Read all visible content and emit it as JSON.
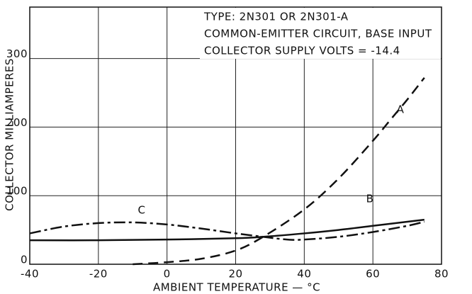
{
  "chart_data": {
    "type": "line",
    "xlabel": "AMBIENT TEMPERATURE — °C",
    "ylabel": "COLLECTOR MILLIAMPERES",
    "annotations": [
      "TYPE: 2N301 OR 2N301-A",
      "COMMON-EMITTER CIRCUIT, BASE INPUT",
      "COLLECTOR SUPPLY VOLTS = -14.4"
    ],
    "xlim": [
      -40,
      80
    ],
    "xticks": [
      -40,
      -20,
      0,
      20,
      40,
      60,
      80
    ],
    "ylim": [
      0,
      375
    ],
    "yticks": [
      0,
      100,
      200,
      300
    ],
    "grid": true,
    "series": [
      {
        "name": "A",
        "color": "#111111",
        "style": "dashed",
        "x": [
          -10,
          0,
          10,
          20,
          28,
          40,
          50,
          60,
          65,
          70,
          75
        ],
        "values": [
          0,
          3,
          8,
          20,
          40,
          80,
          125,
          180,
          210,
          240,
          272
        ]
      },
      {
        "name": "B",
        "color": "#111111",
        "style": "solid",
        "x": [
          -40,
          -20,
          0,
          20,
          28,
          40,
          50,
          60,
          70,
          75
        ],
        "values": [
          35,
          35,
          36,
          38,
          40,
          45,
          50,
          56,
          62,
          65
        ]
      },
      {
        "name": "C",
        "color": "#111111",
        "style": "dashdot",
        "x": [
          -40,
          -30,
          -20,
          -10,
          0,
          10,
          20,
          28,
          35,
          40,
          50,
          60,
          70,
          75
        ],
        "values": [
          45,
          55,
          60,
          61,
          58,
          52,
          45,
          40,
          36,
          36,
          40,
          47,
          56,
          62
        ]
      }
    ]
  }
}
